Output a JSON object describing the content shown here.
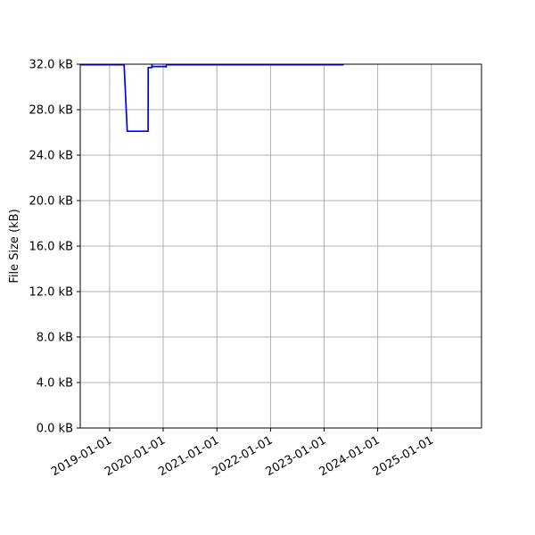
{
  "chart_data": {
    "type": "line",
    "title": "",
    "xlabel": "",
    "ylabel": "File Size (kB)",
    "xlim": [
      "2018-06-15",
      "2025-12-08"
    ],
    "ylim": [
      0,
      32
    ],
    "grid": true,
    "line_color": "#0000ff",
    "x_ticks": [
      "2019-01-01",
      "2020-01-01",
      "2021-01-01",
      "2022-01-01",
      "2023-01-01",
      "2024-01-01",
      "2025-01-01"
    ],
    "y_ticks": [
      0,
      4,
      8,
      12,
      16,
      20,
      24,
      28,
      32
    ],
    "y_tick_labels": [
      "0.0 kB",
      "4.0 kB",
      "8.0 kB",
      "12.0 kB",
      "16.0 kB",
      "20.0 kB",
      "24.0 kB",
      "28.0 kB",
      "32.0 kB"
    ],
    "series": [
      {
        "x": [
          "2018-06-15",
          "2019-04-10",
          "2019-05-01",
          "2019-09-20",
          "2019-09-21",
          "2019-10-15",
          "2019-10-16",
          "2019-10-17",
          "2020-01-20",
          "2020-01-21",
          "2020-01-22",
          "2023-05-15"
        ],
        "y": [
          31.95,
          31.95,
          26.1,
          26.1,
          31.7,
          31.7,
          31.95,
          31.8,
          31.8,
          31.7,
          31.95,
          31.95
        ]
      }
    ]
  }
}
